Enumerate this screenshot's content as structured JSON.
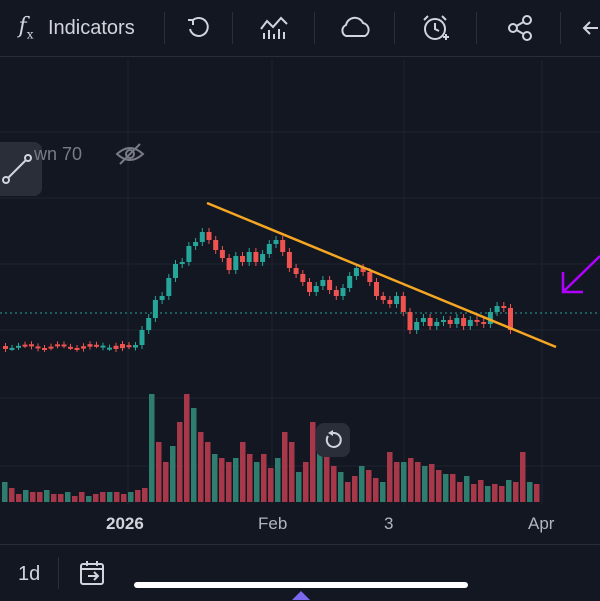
{
  "toolbar": {
    "indicators_icon": "function-icon",
    "indicators_label": "Indicators",
    "icons": [
      "undo-icon",
      "compare-chart-icon",
      "cloud-icon",
      "alarm-add-icon",
      "share-icon",
      "back-arrow-icon"
    ]
  },
  "legend": {
    "ma_text": "wn 70"
  },
  "colors": {
    "background": "#131722",
    "up": "#26a69a",
    "down": "#ef5350",
    "trendline": "#f5a623",
    "arrow": "#b000ff",
    "price_line": "#26a69a"
  },
  "x_axis": {
    "labels": [
      {
        "text": "2026",
        "bold": true
      },
      {
        "text": "Feb",
        "bold": false
      },
      {
        "text": "3",
        "bold": false
      },
      {
        "text": "Apr",
        "bold": false
      }
    ]
  },
  "bottom_bar": {
    "interval": "1d"
  },
  "chart_data": {
    "type": "candlestick",
    "drawings": [
      "descending trendline",
      "arrow"
    ],
    "has_volume": true
  }
}
